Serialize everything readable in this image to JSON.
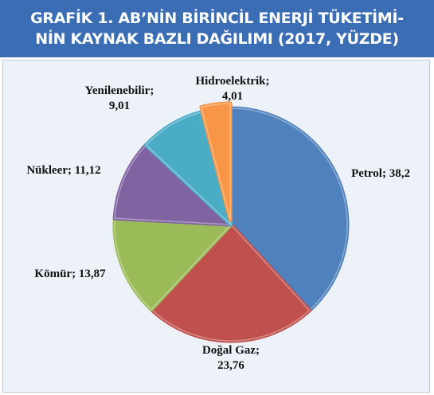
{
  "chart_data": {
    "type": "pie",
    "title": [
      "GRAFİK 1. AB’NİN BİRİNCİL ENERJİ TÜKETİMİ-",
      "NİN KAYNAK BAZLI DAĞILIMI (2017, YÜZDE)"
    ],
    "categories": [
      "Petrol",
      "Doğal Gaz",
      "Kömür",
      "Nükleer",
      "Yenilenebilir",
      "Hidroelektrik"
    ],
    "values": [
      38.2,
      23.76,
      13.87,
      11.12,
      9.01,
      4.01
    ],
    "value_labels": [
      "38,2",
      "23,76",
      "13,87",
      "11,12",
      "9,01",
      "4,01"
    ],
    "label_separator": ";",
    "colors": [
      "#4f81bd",
      "#c0504d",
      "#9bbb59",
      "#8064a2",
      "#4bacc6",
      "#f79646"
    ]
  }
}
